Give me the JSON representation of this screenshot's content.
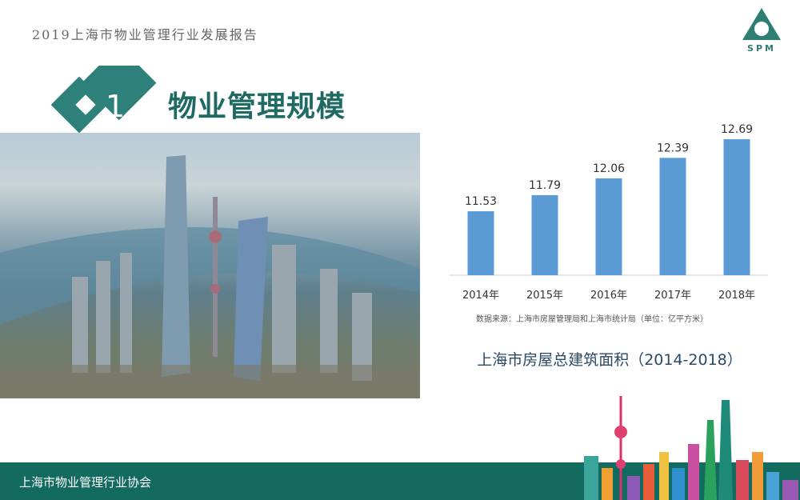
{
  "header": {
    "report_title": "2019上海市物业管理行业发展报告",
    "logo_text": "SPM"
  },
  "section": {
    "number": "1",
    "title": "物业管理规模"
  },
  "footer": {
    "organization": "上海市物业管理行业协会"
  },
  "colors": {
    "brand": "#1f6b64",
    "bar": "#5b9bd5",
    "footer": "#136a5f"
  },
  "chart_data": {
    "type": "bar",
    "title": "上海市房屋总建筑面积（2014-2018）",
    "source_note": "数据来源：上海市房屋管理局和上海市统计局（单位：亿平方米）",
    "categories": [
      "2014年",
      "2015年",
      "2016年",
      "2017年",
      "2018年"
    ],
    "values": [
      11.53,
      11.79,
      12.06,
      12.39,
      12.69
    ],
    "data_labels": [
      "11.53",
      "11.79",
      "12.06",
      "12.39",
      "12.69"
    ],
    "ylim": [
      10.5,
      12.82
    ],
    "grid": false
  }
}
